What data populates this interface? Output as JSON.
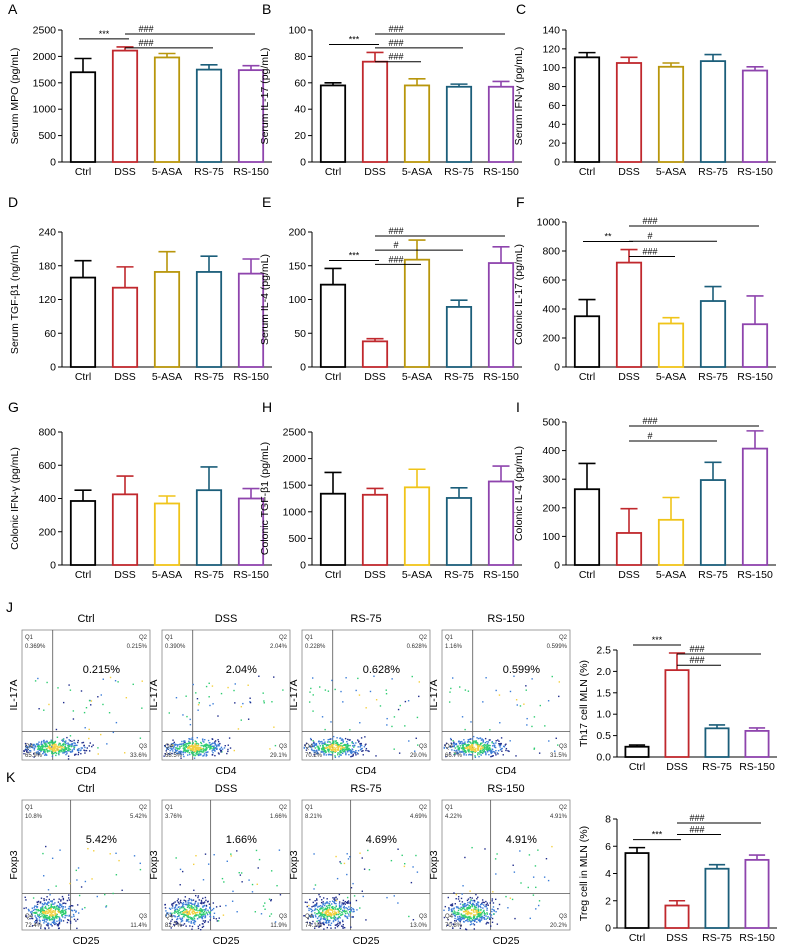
{
  "figure": {
    "categories": [
      "Ctrl",
      "DSS",
      "5-ASA",
      "RS-75",
      "RS-150"
    ],
    "colors": [
      "#000000",
      "#c0282d",
      "#b8960c",
      "#1b5e7a",
      "#8e44ad"
    ],
    "colors_yellow": [
      "#000000",
      "#c0282d",
      "#f0c419",
      "#1b5e7a",
      "#8e44ad"
    ]
  },
  "chart_data": [
    {
      "type": "bar",
      "panel": "A",
      "ylabel": "Serum MPO (pg/mL)",
      "ylim": [
        0,
        2500
      ],
      "yticks": [
        0,
        500,
        1000,
        1500,
        2000,
        2500
      ],
      "categories": [
        "Ctrl",
        "DSS",
        "5-ASA",
        "RS-75",
        "RS-150"
      ],
      "values": [
        1700,
        2110,
        1980,
        1750,
        1740
      ],
      "errors": [
        260,
        70,
        75,
        90,
        85
      ],
      "palette": "main",
      "sig": [
        {
          "from": 0,
          "to": 1,
          "label": "***"
        },
        {
          "from": 1,
          "to": 4,
          "label": "###"
        },
        {
          "from": 1,
          "to": 3,
          "label": "###"
        }
      ]
    },
    {
      "type": "bar",
      "panel": "B",
      "ylabel": "Serum IL-17 (pg/mL)",
      "ylim": [
        0,
        100
      ],
      "yticks": [
        0,
        20,
        40,
        60,
        80,
        100
      ],
      "categories": [
        "Ctrl",
        "DSS",
        "5-ASA",
        "RS-75",
        "RS-150"
      ],
      "values": [
        58,
        76,
        58,
        57,
        57
      ],
      "errors": [
        2,
        7,
        5,
        2,
        4
      ],
      "palette": "main",
      "sig": [
        {
          "from": 0,
          "to": 1,
          "label": "***"
        },
        {
          "from": 1,
          "to": 4,
          "label": "###"
        },
        {
          "from": 1,
          "to": 3,
          "label": "###"
        },
        {
          "from": 1,
          "to": 2,
          "label": "###"
        }
      ]
    },
    {
      "type": "bar",
      "panel": "C",
      "ylabel": "Serum IFN-γ (pg/mL)",
      "ylim": [
        0,
        140
      ],
      "yticks": [
        0,
        20,
        40,
        60,
        80,
        100,
        120,
        140
      ],
      "categories": [
        "Ctrl",
        "DSS",
        "5-ASA",
        "RS-75",
        "RS-150"
      ],
      "values": [
        111,
        105,
        101,
        107,
        97
      ],
      "errors": [
        5,
        6,
        4,
        7,
        4
      ],
      "palette": "main",
      "sig": []
    },
    {
      "type": "bar",
      "panel": "D",
      "ylabel": "Serum TGF-β1 (ng/mL)",
      "ylim": [
        0,
        240
      ],
      "yticks": [
        0,
        60,
        120,
        180,
        240
      ],
      "categories": [
        "Ctrl",
        "DSS",
        "5-ASA",
        "RS-75",
        "RS-150"
      ],
      "values": [
        159,
        141,
        169,
        169,
        166
      ],
      "errors": [
        30,
        37,
        36,
        28,
        26
      ],
      "palette": "main",
      "sig": []
    },
    {
      "type": "bar",
      "panel": "E",
      "ylabel": "Serum IL-4 (pg/mL)",
      "ylim": [
        0,
        200
      ],
      "yticks": [
        0,
        50,
        100,
        150,
        200
      ],
      "categories": [
        "Ctrl",
        "DSS",
        "5-ASA",
        "RS-75",
        "RS-150"
      ],
      "values": [
        122,
        38,
        159,
        89,
        154
      ],
      "errors": [
        24,
        4,
        29,
        10,
        24
      ],
      "palette": "main",
      "sig": [
        {
          "from": 0,
          "to": 1,
          "label": "***"
        },
        {
          "from": 1,
          "to": 4,
          "label": "###"
        },
        {
          "from": 1,
          "to": 3,
          "label": "#"
        },
        {
          "from": 1,
          "to": 2,
          "label": "###"
        }
      ]
    },
    {
      "type": "bar",
      "panel": "F",
      "ylabel": "Colonic IL-17 (pg/mL)",
      "ylim": [
        0,
        1000
      ],
      "yticks": [
        0,
        200,
        400,
        600,
        800,
        1000
      ],
      "categories": [
        "Ctrl",
        "DSS",
        "5-ASA",
        "RS-75",
        "RS-150"
      ],
      "values": [
        350,
        720,
        300,
        455,
        295
      ],
      "errors": [
        115,
        90,
        40,
        100,
        195
      ],
      "palette": "yellow",
      "sig": [
        {
          "from": 0,
          "to": 1,
          "label": "**"
        },
        {
          "from": 1,
          "to": 4,
          "label": "###"
        },
        {
          "from": 1,
          "to": 3,
          "label": "#"
        },
        {
          "from": 1,
          "to": 2,
          "label": "###"
        }
      ]
    },
    {
      "type": "bar",
      "panel": "G",
      "ylabel": "Colonic IFN-γ (pg/mL)",
      "ylim": [
        0,
        800
      ],
      "yticks": [
        0,
        200,
        400,
        600,
        800
      ],
      "categories": [
        "Ctrl",
        "DSS",
        "5-ASA",
        "RS-75",
        "RS-150"
      ],
      "values": [
        385,
        425,
        370,
        450,
        400
      ],
      "errors": [
        65,
        110,
        45,
        140,
        60
      ],
      "palette": "yellow",
      "sig": []
    },
    {
      "type": "bar",
      "panel": "H",
      "ylabel": "Colonic TGF-β1 (pg/mL)",
      "ylim": [
        0,
        2500
      ],
      "yticks": [
        0,
        500,
        1000,
        1500,
        2000,
        2500
      ],
      "categories": [
        "Ctrl",
        "DSS",
        "5-ASA",
        "RS-75",
        "RS-150"
      ],
      "values": [
        1340,
        1320,
        1460,
        1260,
        1570
      ],
      "errors": [
        400,
        120,
        340,
        190,
        290
      ],
      "palette": "yellow",
      "sig": []
    },
    {
      "type": "bar",
      "panel": "I",
      "ylabel": "Colonic IL-4 (pg/mL)",
      "ylim": [
        0,
        500
      ],
      "yticks": [
        0,
        100,
        200,
        300,
        400,
        500
      ],
      "categories": [
        "Ctrl",
        "DSS",
        "5-ASA",
        "RS-75",
        "RS-150"
      ],
      "values": [
        265,
        112,
        158,
        297,
        407
      ],
      "errors": [
        90,
        85,
        78,
        62,
        62
      ],
      "palette": "yellow",
      "sig": [
        {
          "from": 1,
          "to": 4,
          "label": "###"
        },
        {
          "from": 1,
          "to": 3,
          "label": "#"
        }
      ]
    },
    {
      "type": "bar",
      "panel": "J",
      "ylabel": "Th17 cell MLN (%)",
      "ylim": [
        0,
        2.5
      ],
      "yticks": [
        0.0,
        0.5,
        1.0,
        1.5,
        2.0,
        2.5
      ],
      "tick_decimals": 1,
      "categories": [
        "Ctrl",
        "DSS",
        "RS-75",
        "RS-150"
      ],
      "values": [
        0.24,
        2.03,
        0.67,
        0.61
      ],
      "errors": [
        0.04,
        0.4,
        0.08,
        0.07
      ],
      "palette": "four",
      "sig": [
        {
          "from": 0,
          "to": 1,
          "label": "***"
        },
        {
          "from": 1,
          "to": 3,
          "label": "###"
        },
        {
          "from": 1,
          "to": 2,
          "label": "###"
        }
      ]
    },
    {
      "type": "bar",
      "panel": "K",
      "ylabel": "Treg cell in MLN (%)",
      "ylim": [
        0,
        8
      ],
      "yticks": [
        0,
        2,
        4,
        6,
        8
      ],
      "categories": [
        "Ctrl",
        "DSS",
        "RS-75",
        "RS-150"
      ],
      "values": [
        5.5,
        1.65,
        4.35,
        5.0
      ],
      "errors": [
        0.4,
        0.35,
        0.3,
        0.35
      ],
      "palette": "four",
      "sig": [
        {
          "from": 0,
          "to": 1,
          "label": "***"
        },
        {
          "from": 1,
          "to": 3,
          "label": "###"
        },
        {
          "from": 1,
          "to": 2,
          "label": "###"
        }
      ]
    }
  ],
  "flow": {
    "J": {
      "ylabel": "IL-17A",
      "xlabel": "CD4",
      "plots": [
        {
          "title": "Ctrl",
          "value": "0.215%",
          "q1": "0.369%",
          "q2": "0.215%",
          "q3": "33.6%",
          "q4": "65.9%"
        },
        {
          "title": "DSS",
          "value": "2.04%",
          "q1": "0.390%",
          "q2": "2.04%",
          "q3": "29.1%",
          "q4": "68.5%"
        },
        {
          "title": "RS-75",
          "value": "0.628%",
          "q1": "0.228%",
          "q2": "0.628%",
          "q3": "29.0%",
          "q4": "70.2%"
        },
        {
          "title": "RS-150",
          "value": "0.599%",
          "q1": "1.16%",
          "q2": "0.599%",
          "q3": "31.5%",
          "q4": "66.7%"
        }
      ]
    },
    "K": {
      "ylabel": "Foxp3",
      "xlabel": "CD25",
      "plots": [
        {
          "title": "Ctrl",
          "value": "5.42%",
          "q1": "10.8%",
          "q2": "5.42%",
          "q3": "11.4%",
          "q4": "72.4%"
        },
        {
          "title": "DSS",
          "value": "1.66%",
          "q1": "3.76%",
          "q2": "1.66%",
          "q3": "11.9%",
          "q4": "82.7%"
        },
        {
          "title": "RS-75",
          "value": "4.69%",
          "q1": "8.21%",
          "q2": "4.69%",
          "q3": "13.0%",
          "q4": "74.1%"
        },
        {
          "title": "RS-150",
          "value": "4.91%",
          "q1": "4.22%",
          "q2": "4.91%",
          "q3": "20.2%",
          "q4": "70.8%"
        }
      ]
    }
  },
  "quadrant_names": {
    "q1": "Q1",
    "q2": "Q2",
    "q3": "Q3",
    "q4": "Q4"
  }
}
